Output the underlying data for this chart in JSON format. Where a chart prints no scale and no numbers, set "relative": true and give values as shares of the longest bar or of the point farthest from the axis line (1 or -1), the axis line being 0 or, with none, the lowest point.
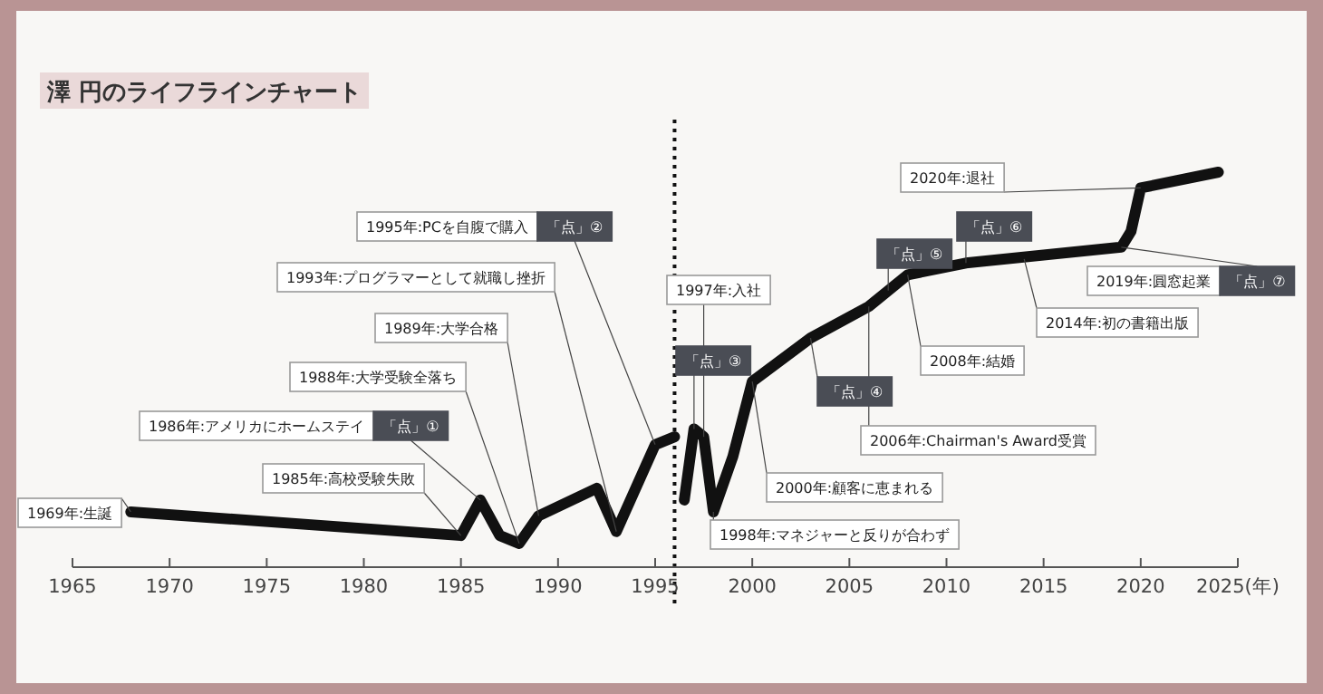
{
  "chart_data": {
    "type": "line",
    "title": "澤 円のライフラインチャート",
    "relative": true,
    "xlim": [
      1965,
      2025
    ],
    "xticks": [
      1965,
      1970,
      1975,
      1980,
      1985,
      1990,
      1995,
      2000,
      2005,
      2010,
      2015,
      2020,
      {
        "value": 2025,
        "label": "2025(年)"
      }
    ],
    "series": [
      {
        "color": "#111111",
        "line_style": "solid",
        "x": [
          1968,
          1985,
          1986,
          1987,
          1988,
          1989,
          1992,
          1993,
          1995,
          1996
        ],
        "values": [
          0.14,
          0.08,
          0.17,
          0.08,
          0.06,
          0.13,
          0.2,
          0.09,
          0.31,
          0.33
        ]
      },
      {
        "color": "#111111",
        "line_style": "solid",
        "x": [
          1996.5,
          1997,
          1997.5,
          1998,
          1999,
          2000,
          2003,
          2006,
          2008,
          2011,
          2015,
          2019,
          2019.5,
          2020,
          2024
        ],
        "values": [
          0.17,
          0.35,
          0.33,
          0.14,
          0.28,
          0.47,
          0.58,
          0.66,
          0.74,
          0.77,
          0.79,
          0.81,
          0.85,
          0.96,
          1.0
        ]
      }
    ],
    "ref_lines": [
      {
        "axis": "x",
        "value": 1996,
        "line_style": "dotted",
        "color": "#111111"
      }
    ],
    "annotations": [
      {
        "text": "1969年:生誕",
        "x": 1968,
        "y": 0.14
      },
      {
        "text": "1985年:高校受験失敗",
        "x": 1985,
        "y": 0.08
      },
      "1986年:アメリカにホームステイ",
      {
        "text": "「点」①",
        "x": 1986,
        "y": 0.17
      },
      {
        "text": "1988年:大学受験全落ち",
        "x": 1988,
        "y": 0.06
      },
      {
        "text": "1989年:大学合格",
        "x": 1989,
        "y": 0.13
      },
      {
        "text": "1993年:プログラマーとして就職し挫折",
        "x": 1993,
        "y": 0.09
      },
      "1995年:PCを自腹で購入",
      {
        "text": "「点」②",
        "x": 1995,
        "y": 0.31
      },
      {
        "text": "「点」③",
        "x": 1997,
        "y": 0.35
      },
      {
        "text": "1997年:入社",
        "x": 1997.5,
        "y": 0.33
      },
      {
        "text": "1998年:マネジャーと反りが合わず",
        "x": 1998,
        "y": 0.14
      },
      {
        "text": "2000年:顧客に恵まれる",
        "x": 2000,
        "y": 0.47
      },
      {
        "text": "「点」④",
        "x": 2003,
        "y": 0.58
      },
      {
        "text": "2006年:Chairman's Award受賞",
        "x": 2006,
        "y": 0.66
      },
      {
        "text": "「点」⑤",
        "x": 2007,
        "y": 0.7
      },
      {
        "text": "2008年:結婚",
        "x": 2008,
        "y": 0.74
      },
      {
        "text": "「点」⑥",
        "x": 2011,
        "y": 0.77
      },
      {
        "text": "2014年:初の書籍出版",
        "x": 2014,
        "y": 0.78
      },
      "2019年:圓窓起業",
      {
        "text": "「点」⑦",
        "x": 2019,
        "y": 0.81
      },
      {
        "text": "2020年:退社",
        "x": 2020,
        "y": 0.96
      }
    ]
  }
}
